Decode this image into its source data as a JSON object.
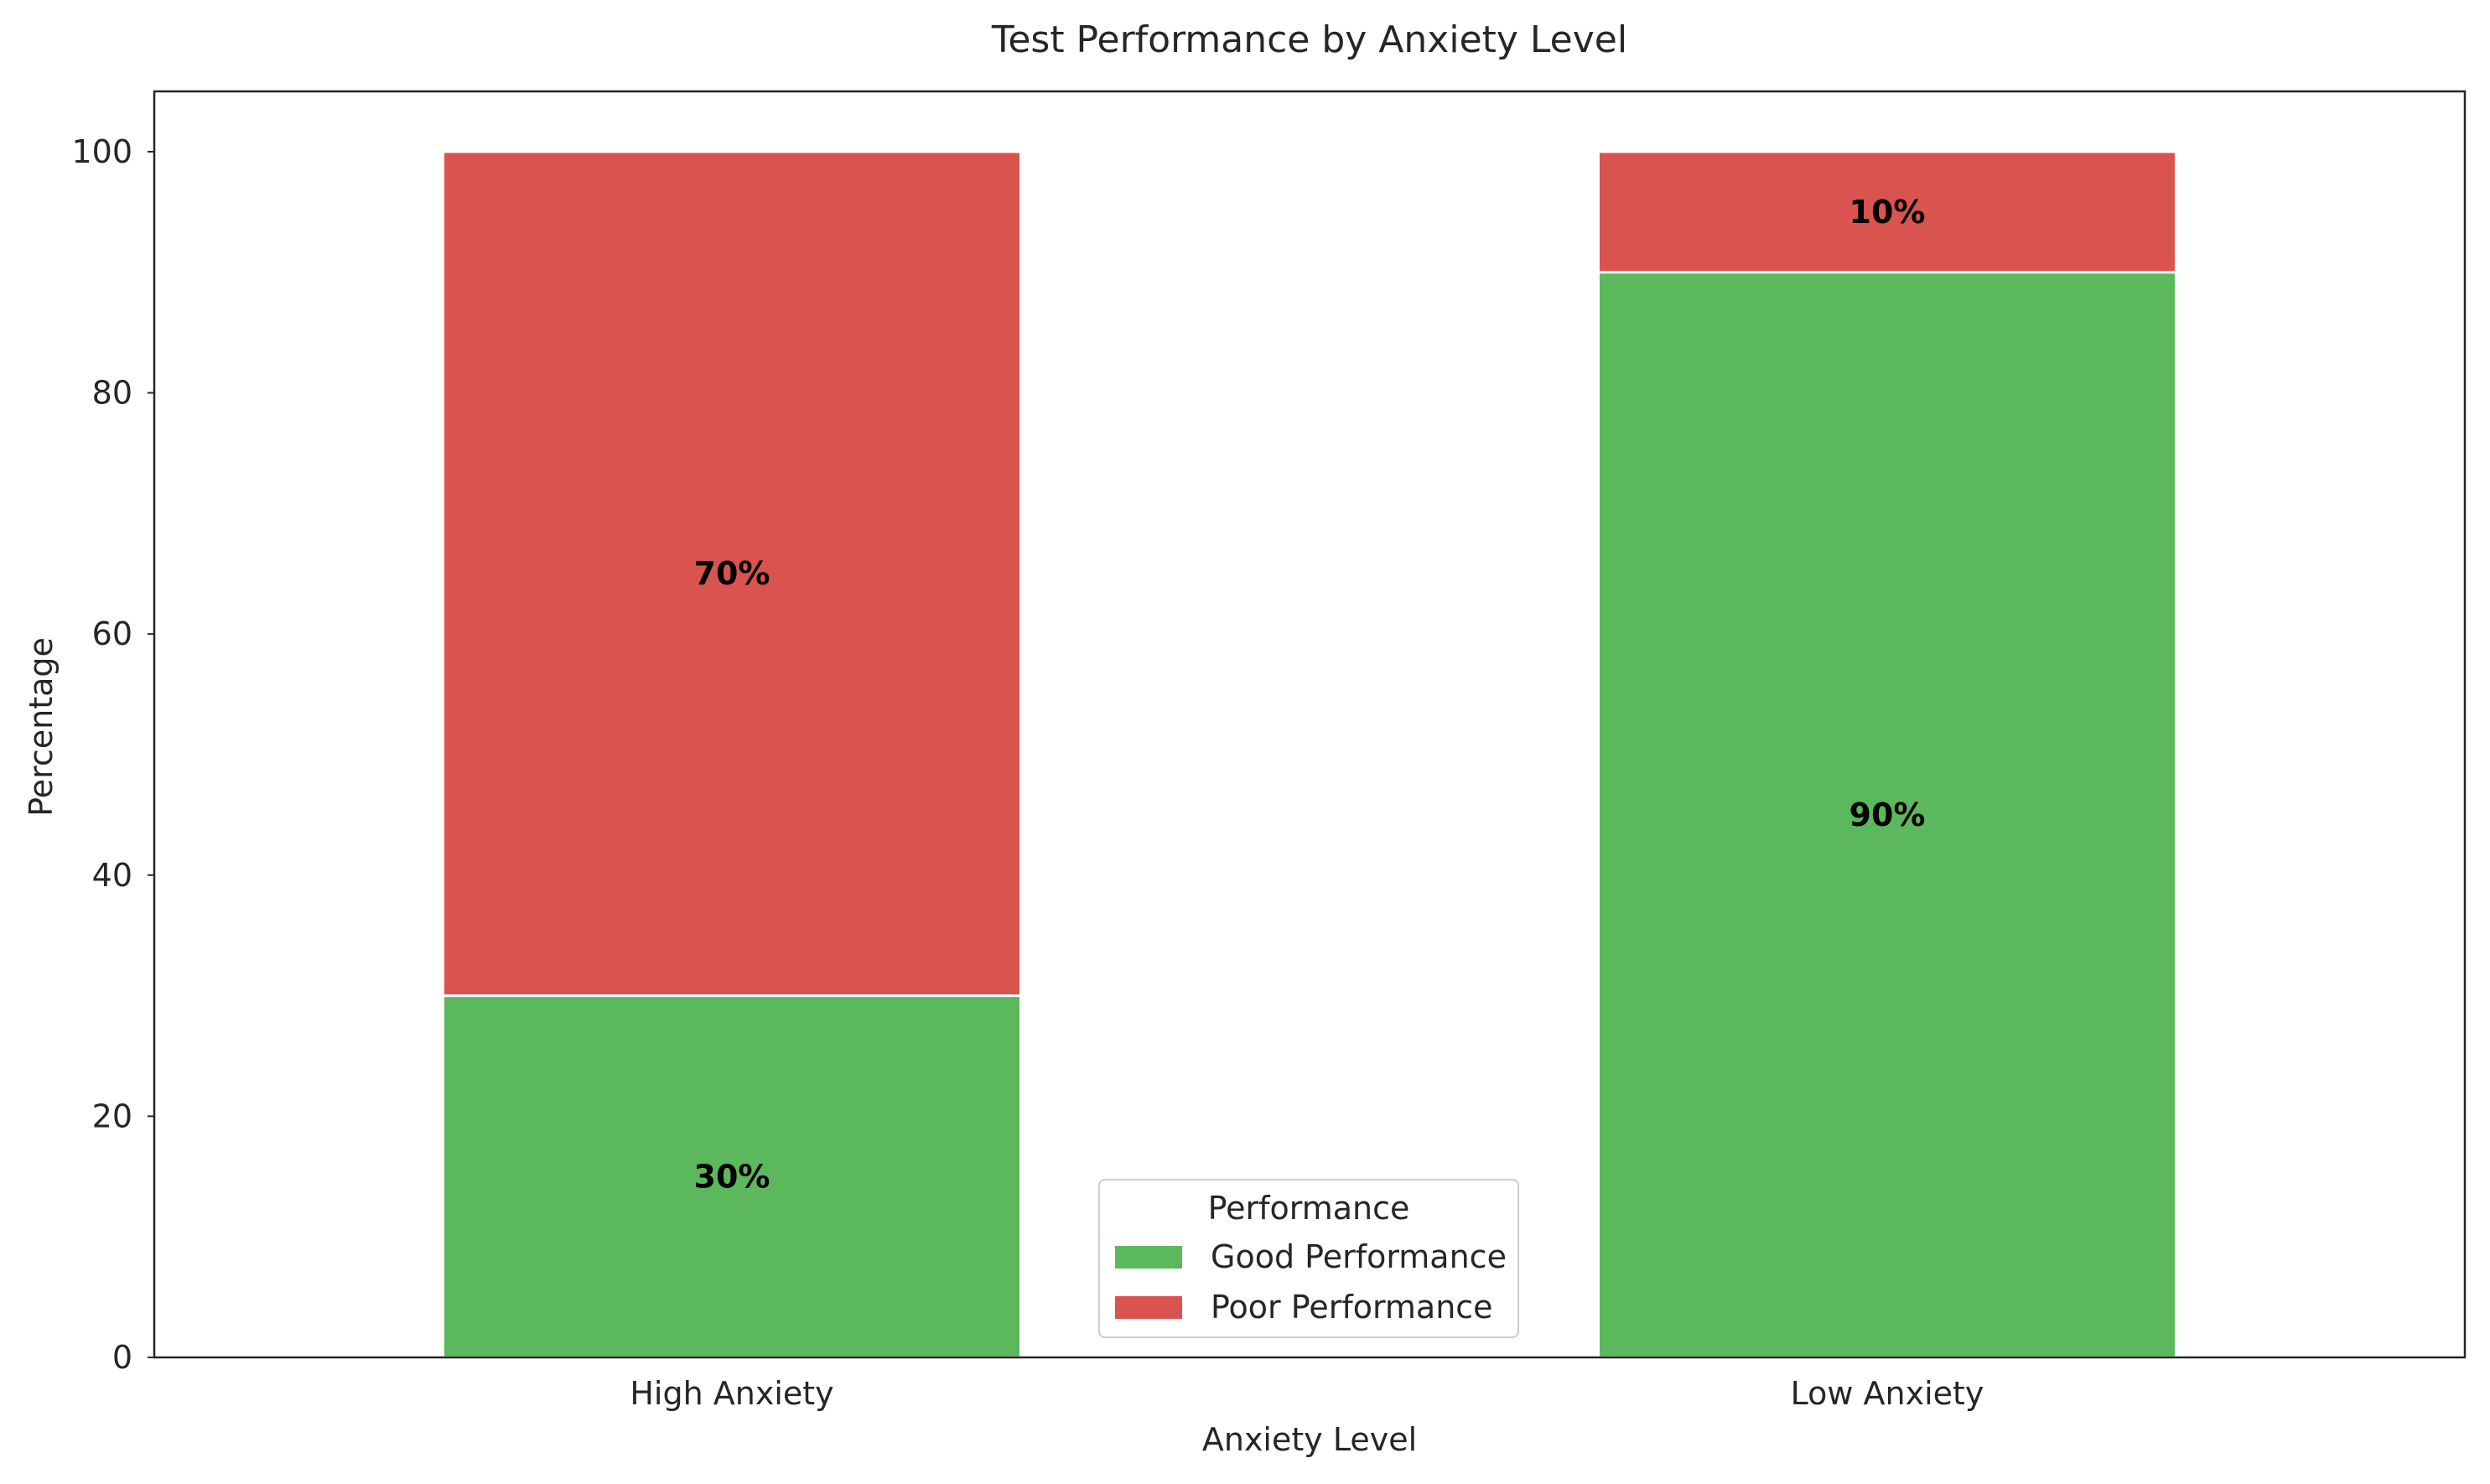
{
  "chart_data": {
    "type": "bar",
    "stacked": true,
    "title": "Test Performance by Anxiety Level",
    "xlabel": "Anxiety Level",
    "ylabel": "Percentage",
    "categories": [
      "High Anxiety",
      "Low Anxiety"
    ],
    "series": [
      {
        "name": "Good Performance",
        "values": [
          30,
          90
        ],
        "color": "#5cb85c"
      },
      {
        "name": "Poor Performance",
        "values": [
          70,
          10
        ],
        "color": "#d9534f"
      }
    ],
    "data_labels": [
      [
        "30%",
        "90%"
      ],
      [
        "70%",
        "10%"
      ]
    ],
    "ylim": [
      0,
      105
    ],
    "yticks": [
      0,
      20,
      40,
      60,
      80,
      100
    ],
    "legend": {
      "title": "Performance",
      "placement": "lower-center"
    },
    "grid": false
  }
}
